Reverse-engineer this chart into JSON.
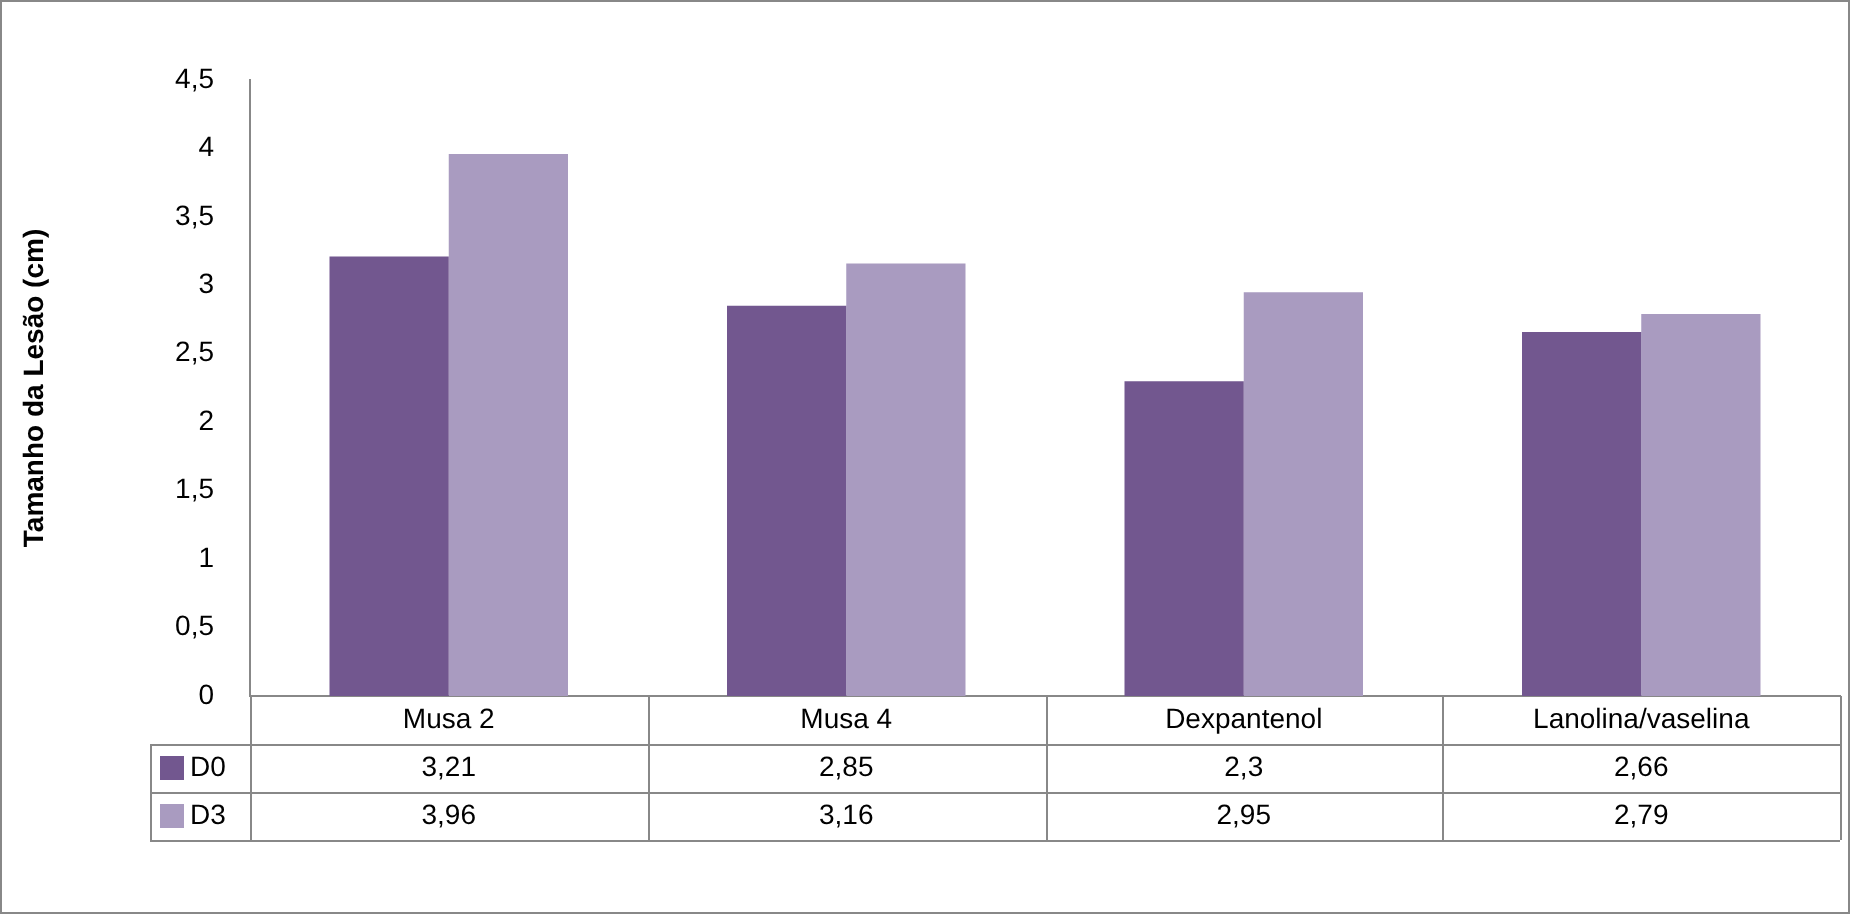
{
  "chart_data": {
    "type": "bar",
    "ylabel": "Tamanho da Lesão (cm)",
    "categories": [
      "Musa 2",
      "Musa 4",
      "Dexpantenol",
      "Lanolina/vaselina"
    ],
    "series": [
      {
        "name": "D0",
        "color": "#72578f",
        "values": [
          3.21,
          2.85,
          2.3,
          2.66
        ],
        "value_labels": [
          "3,21",
          "2,85",
          "2,3",
          "2,66"
        ]
      },
      {
        "name": "D3",
        "color": "#a99bc0",
        "values": [
          3.96,
          3.16,
          2.95,
          2.79
        ],
        "value_labels": [
          "3,96",
          "3,16",
          "2,95",
          "2,79"
        ]
      }
    ],
    "ylim": [
      0,
      4.5
    ],
    "yticks": [
      0,
      {
        "value": 0.5,
        "label": "0,5"
      },
      1,
      {
        "value": 1.5,
        "label": "1,5"
      },
      2,
      {
        "value": 2.5,
        "label": "2,5"
      },
      3,
      {
        "value": 3.5,
        "label": "3,5"
      },
      4,
      {
        "value": 4.5,
        "label": "4,5"
      }
    ],
    "grid": false,
    "legend": "bottom"
  }
}
